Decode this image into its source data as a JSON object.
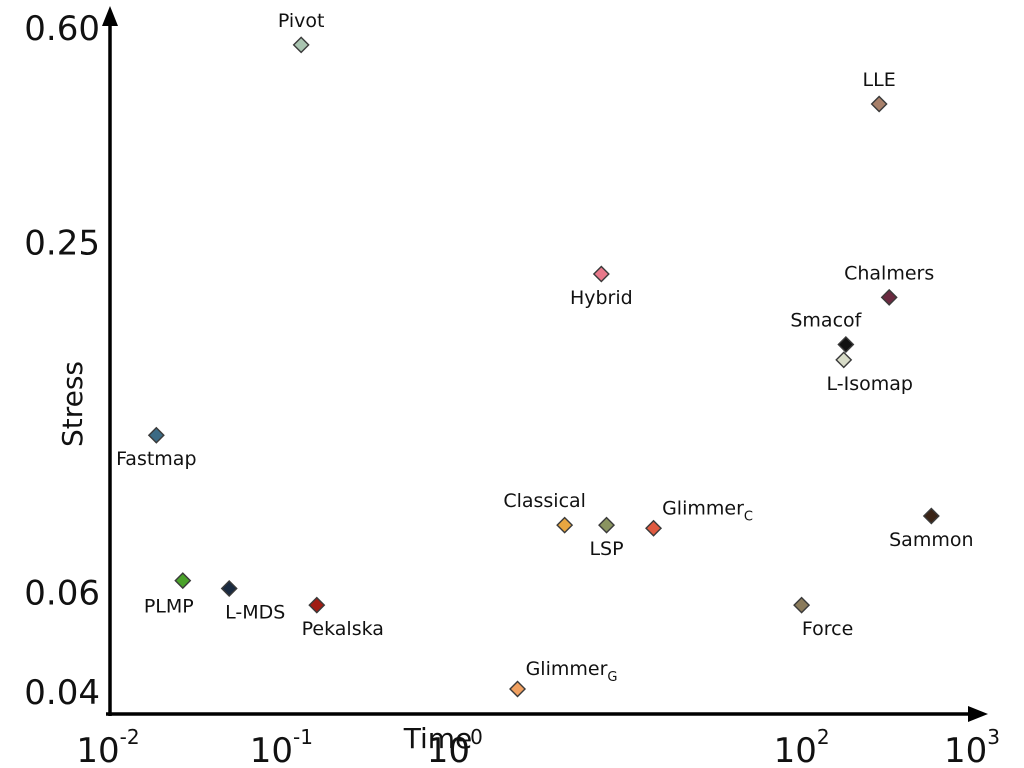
{
  "chart_data": {
    "type": "scatter",
    "title": "",
    "xlabel": "Time",
    "ylabel": "Stress",
    "x_scale": "log",
    "y_scale": "log",
    "xlim": [
      0.01,
      1000
    ],
    "ylim": [
      0.04,
      0.6
    ],
    "x_ticks": [
      {
        "value": 0.01,
        "base": "10",
        "exp": "-2"
      },
      {
        "value": 0.1,
        "base": "10",
        "exp": "-1"
      },
      {
        "value": 1,
        "base": "10",
        "exp": "0"
      },
      {
        "value": 100,
        "base": "10",
        "exp": "2"
      },
      {
        "value": 1000,
        "base": "10",
        "exp": "3"
      }
    ],
    "y_ticks": [
      {
        "value": 0.6,
        "label": "0.60"
      },
      {
        "value": 0.25,
        "label": "0.25"
      },
      {
        "value": 0.06,
        "label": "0.06"
      },
      {
        "value": 0.04,
        "label": "0.04"
      }
    ],
    "grid": false,
    "legend": "none",
    "points": [
      {
        "name": "Pivot",
        "sub": "",
        "x": 0.13,
        "y": 0.56,
        "color": "#a9c4b0",
        "label_pos": "above"
      },
      {
        "name": "LLE",
        "sub": "",
        "x": 280,
        "y": 0.44,
        "color": "#a8806a",
        "label_pos": "above"
      },
      {
        "name": "Chalmers",
        "sub": "",
        "x": 320,
        "y": 0.2,
        "color": "#6a2a40",
        "label_pos": "above"
      },
      {
        "name": "Hybrid",
        "sub": "",
        "x": 7,
        "y": 0.22,
        "color": "#e8788a",
        "label_pos": "below"
      },
      {
        "name": "Smacof",
        "sub": "",
        "x": 180,
        "y": 0.165,
        "color": "#111111",
        "label_pos": "above-left"
      },
      {
        "name": "L-Isomap",
        "sub": "",
        "x": 175,
        "y": 0.155,
        "color": "#d8dcc8",
        "label_pos": "below-right"
      },
      {
        "name": "Fastmap",
        "sub": "",
        "x": 0.019,
        "y": 0.114,
        "color": "#3c6a84",
        "label_pos": "below"
      },
      {
        "name": "Classical",
        "sub": "",
        "x": 4.3,
        "y": 0.079,
        "color": "#e8a640",
        "label_pos": "above-left"
      },
      {
        "name": "LSP",
        "sub": "",
        "x": 7.5,
        "y": 0.079,
        "color": "#8a9460",
        "label_pos": "below"
      },
      {
        "name": "Glimmer",
        "sub": "C",
        "x": 14,
        "y": 0.078,
        "color": "#e05a40",
        "label_pos": "above-right"
      },
      {
        "name": "Sammon",
        "sub": "",
        "x": 560,
        "y": 0.082,
        "color": "#3a2416",
        "label_pos": "below"
      },
      {
        "name": "PLMP",
        "sub": "",
        "x": 0.027,
        "y": 0.063,
        "color": "#4aa22a",
        "label_pos": "below-left"
      },
      {
        "name": "L-MDS",
        "sub": "",
        "x": 0.05,
        "y": 0.061,
        "color": "#1a2a40",
        "label_pos": "below-right"
      },
      {
        "name": "Pekalska",
        "sub": "",
        "x": 0.16,
        "y": 0.057,
        "color": "#a01c14",
        "label_pos": "below-right"
      },
      {
        "name": "Force",
        "sub": "",
        "x": 100,
        "y": 0.057,
        "color": "#8a7a5a",
        "label_pos": "below-right"
      },
      {
        "name": "Glimmer",
        "sub": "G",
        "x": 2.3,
        "y": 0.0405,
        "color": "#f0a060",
        "label_pos": "above-right"
      }
    ]
  }
}
